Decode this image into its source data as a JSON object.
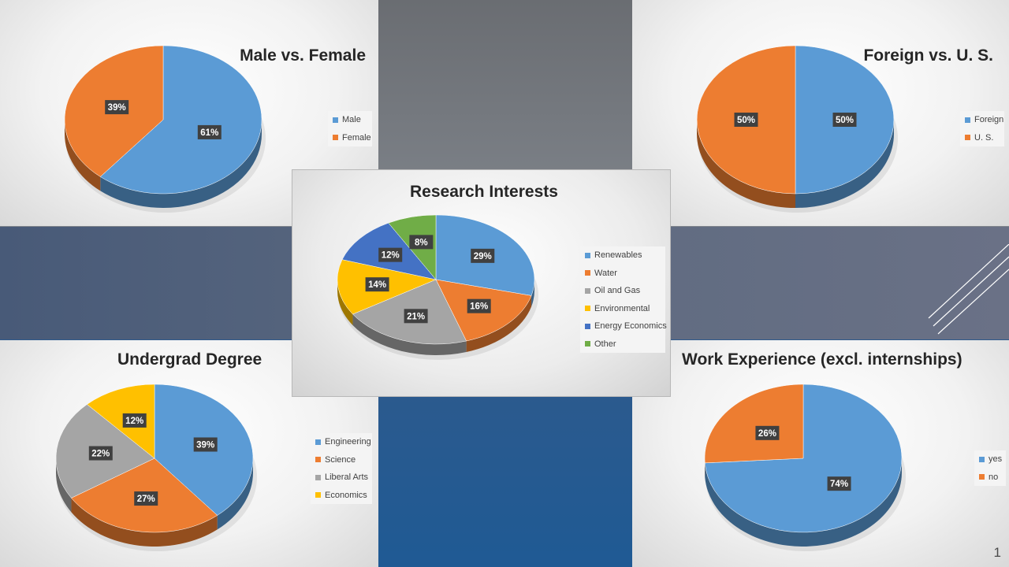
{
  "page_number": "1",
  "chart_data": [
    {
      "id": "gender",
      "type": "pie",
      "title": "Male vs. Female",
      "categories": [
        "Male",
        "Female"
      ],
      "values": [
        61,
        39
      ],
      "colors": [
        "#5b9bd5",
        "#ed7d31"
      ],
      "legend": "right"
    },
    {
      "id": "origin",
      "type": "pie",
      "title": "Foreign vs. U. S.",
      "categories": [
        "Foreign",
        "U. S."
      ],
      "values": [
        50,
        50
      ],
      "colors": [
        "#5b9bd5",
        "#ed7d31"
      ],
      "legend": "right"
    },
    {
      "id": "research",
      "type": "pie",
      "title": "Research Interests",
      "categories": [
        "Renewables",
        "Water",
        "Oil and Gas",
        "Environmental",
        "Energy Economics",
        "Other"
      ],
      "values": [
        29,
        16,
        21,
        14,
        12,
        8
      ],
      "colors": [
        "#5b9bd5",
        "#ed7d31",
        "#a5a5a5",
        "#ffc000",
        "#4472c4",
        "#70ad47"
      ],
      "legend": "right"
    },
    {
      "id": "degree",
      "type": "pie",
      "title": "Undergrad Degree",
      "categories": [
        "Engineering",
        "Science",
        "Liberal Arts",
        "Economics"
      ],
      "values": [
        39,
        27,
        22,
        12
      ],
      "colors": [
        "#5b9bd5",
        "#ed7d31",
        "#a5a5a5",
        "#ffc000"
      ],
      "legend": "right"
    },
    {
      "id": "work",
      "type": "pie",
      "title": "Work Experience (excl. internships)",
      "categories": [
        "yes",
        "no"
      ],
      "values": [
        74,
        26
      ],
      "colors": [
        "#5b9bd5",
        "#ed7d31"
      ],
      "legend": "right"
    }
  ]
}
